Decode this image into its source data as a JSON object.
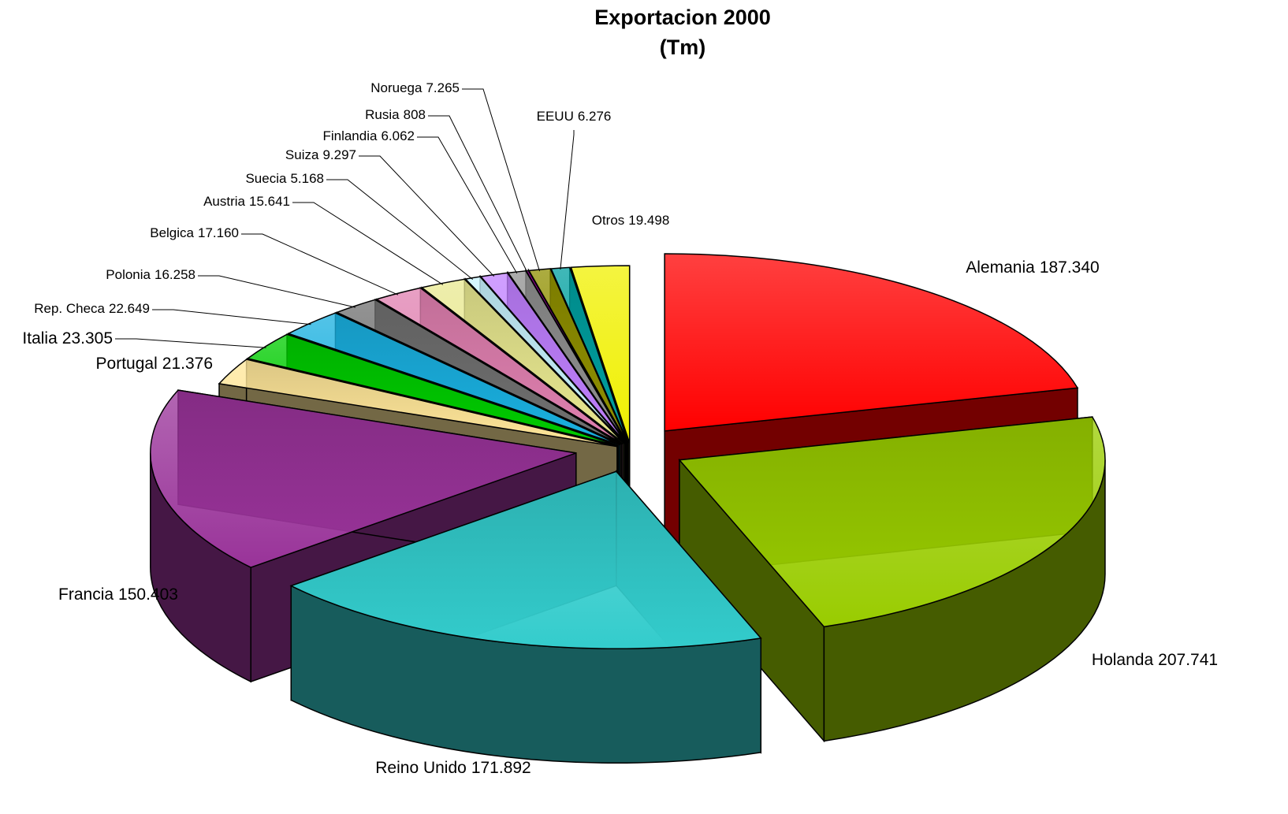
{
  "chart_data": {
    "type": "pie",
    "title": "Exportacion 2000",
    "subtitle": "(Tm)",
    "categories": [
      "Alemania",
      "Holanda",
      "Reino Unido",
      "Francia",
      "Portugal",
      "Italia",
      "Rep. Checa",
      "Polonia",
      "Belgica",
      "Austria",
      "Suecia",
      "Suiza",
      "Finlandia",
      "Rusia",
      "Noruega",
      "EEUU",
      "Otros"
    ],
    "values": [
      187340,
      207741,
      171892,
      150403,
      21376,
      23305,
      22649,
      16258,
      17160,
      15641,
      5168,
      9297,
      6062,
      808,
      7265,
      6276,
      19498
    ],
    "value_labels": [
      "187.340",
      "207.741",
      "171.892",
      "150.403",
      "21.376",
      "23.305",
      "22.649",
      "16.258",
      "17.160",
      "15.641",
      "5.168",
      "9.297",
      "6.062",
      "808",
      "7.265",
      "6.276",
      "19.498"
    ],
    "colors": [
      "#ff0000",
      "#99cc00",
      "#33cccc",
      "#993399",
      "#ffe699",
      "#00cc00",
      "#1ab0e0",
      "#707070",
      "#e080b0",
      "#e8e890",
      "#c8f4ff",
      "#c080ff",
      "#909090",
      "#b000b0",
      "#909000",
      "#00a0a0",
      "#f0f000"
    ]
  }
}
